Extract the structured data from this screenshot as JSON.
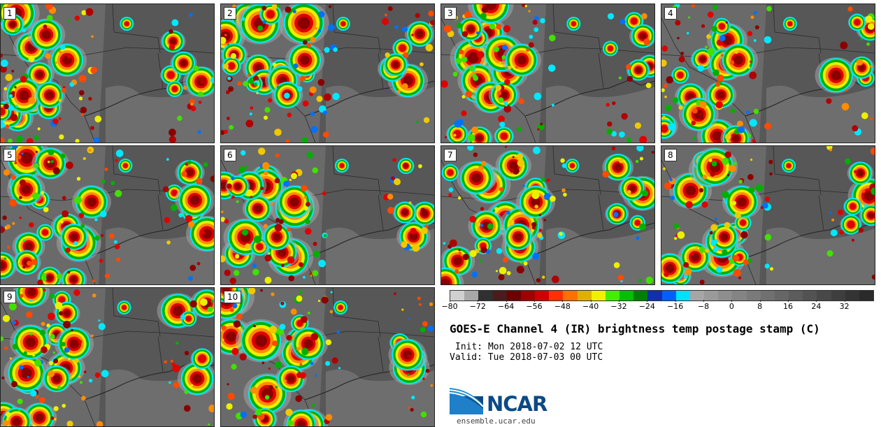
{
  "panels": [
    {
      "label": "1"
    },
    {
      "label": "2"
    },
    {
      "label": "3"
    },
    {
      "label": "4"
    },
    {
      "label": "5"
    },
    {
      "label": "6"
    },
    {
      "label": "7"
    },
    {
      "label": "8"
    },
    {
      "label": "9"
    },
    {
      "label": "10"
    }
  ],
  "colorbar": {
    "colors": [
      "#d0d0d0",
      "#a8a8a8",
      "#303030",
      "#4a1c1c",
      "#6e0000",
      "#a00000",
      "#d00000",
      "#ff3000",
      "#ff7000",
      "#e0b000",
      "#f0f000",
      "#40f000",
      "#00c000",
      "#008000",
      "#1030b0",
      "#0060ff",
      "#00e0ff",
      "#a6a6a6",
      "#9a9a9a",
      "#8e8e8e",
      "#848484",
      "#7a7a7a",
      "#707070",
      "#666666",
      "#5c5c5c",
      "#525252",
      "#484848",
      "#3e3e3e",
      "#343434",
      "#2a2a2a"
    ],
    "min": -80,
    "max": 40,
    "ticks": [
      "−80",
      "−72",
      "−64",
      "−56",
      "−48",
      "−40",
      "−32",
      "−24",
      "−16",
      "−8",
      "0",
      "8",
      "16",
      "24",
      "32"
    ],
    "tick_values": [
      -80,
      -72,
      -64,
      -56,
      -48,
      -40,
      -32,
      -24,
      -16,
      -8,
      0,
      8,
      16,
      24,
      32
    ]
  },
  "title": "GOES-E Channel 4 (IR) brightness temp postage stamp (C)",
  "init": "Init: Mon 2018-07-02 12 UTC",
  "valid": "Valid: Tue 2018-07-03 00 UTC",
  "logo": {
    "text": "NCAR",
    "color": "#0b4a85",
    "accent": "#1a8ad4"
  },
  "url": "ensemble.ucar.edu"
}
